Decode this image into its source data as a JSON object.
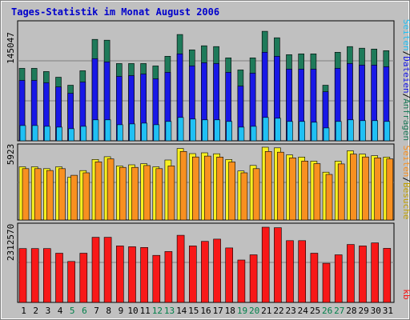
{
  "chart_data": {
    "type": "bar",
    "title": "Tages-Statistik im Monat August 2006",
    "categories": [
      "1",
      "2",
      "3",
      "4",
      "5",
      "6",
      "7",
      "8",
      "9",
      "10",
      "11",
      "12",
      "13",
      "14",
      "15",
      "16",
      "17",
      "18",
      "19",
      "20",
      "21",
      "22",
      "23",
      "24",
      "25",
      "26",
      "27",
      "28",
      "29",
      "30",
      "31"
    ],
    "weekend_days": [
      "5",
      "6",
      "12",
      "13",
      "19",
      "20",
      "26",
      "27"
    ],
    "panels": [
      {
        "name": "requests",
        "scale_label": "145047",
        "ymax": 145047,
        "series": [
          {
            "name": "Anfragen",
            "color": "#1e7a5a",
            "values": [
              90000,
              90000,
              86000,
              79000,
              69000,
              87000,
              126000,
              125000,
              96000,
              96000,
              96000,
              93000,
              105000,
              132000,
              113000,
              118000,
              117000,
              103000,
              88000,
              103000,
              136000,
              128000,
              107000,
              108000,
              108000,
              69000,
              110000,
              117000,
              115000,
              114000,
              112000
            ]
          },
          {
            "name": "Dateien",
            "color": "#1818e6",
            "values": [
              75000,
              75000,
              72000,
              67000,
              59000,
              73000,
              102000,
              98000,
              80000,
              81000,
              83000,
              77000,
              85000,
              108000,
              93000,
              97000,
              96000,
              85000,
              68000,
              84000,
              110000,
              105000,
              89000,
              89000,
              89000,
              61000,
              90000,
              96000,
              94000,
              94000,
              92000
            ]
          },
          {
            "name": "Seiten",
            "color": "#20c0f4",
            "values": [
              19000,
              19000,
              18000,
              17000,
              15000,
              18000,
              26000,
              26000,
              20000,
              21000,
              22000,
              20000,
              24000,
              29000,
              27000,
              26000,
              26000,
              24000,
              17000,
              18000,
              29000,
              28000,
              24000,
              24000,
              23000,
              16000,
              24000,
              26000,
              25000,
              25000,
              24000
            ]
          }
        ]
      },
      {
        "name": "visits",
        "scale_label": "5923",
        "ymax": 5923,
        "series": [
          {
            "name": "Besuche",
            "color": "#f8f020",
            "values": [
              4330,
              4330,
              4180,
              4330,
              3490,
              4020,
              4930,
              5150,
              4400,
              4490,
              4580,
              4330,
              4880,
              5820,
              5400,
              5470,
              5390,
              4920,
              3990,
              4440,
              5920,
              5870,
              5300,
              5120,
              4790,
              3890,
              4790,
              5630,
              5360,
              5230,
              5120
            ]
          },
          {
            "name": "Seiten",
            "color": "#f89020",
            "values": [
              4180,
              4180,
              4030,
              4180,
              3640,
              3840,
              4730,
              4970,
              4280,
              4280,
              4430,
              4180,
              4400,
              5580,
              5130,
              5200,
              5120,
              4720,
              3840,
              4180,
              5580,
              5520,
              5060,
              4800,
              4590,
              3710,
              4560,
              5360,
              5130,
              5060,
              4970
            ]
          }
        ]
      },
      {
        "name": "traffic",
        "scale_label": "2312570",
        "ymax": 2312570,
        "series": [
          {
            "name": "kb",
            "color": "#f81818",
            "values": [
              1655000,
              1655000,
              1655000,
              1513000,
              1259000,
              1513000,
              2003000,
              2003000,
              1737000,
              1712000,
              1689000,
              1446000,
              1564000,
              2064000,
              1737000,
              1877000,
              1946000,
              1676000,
              1303000,
              1464000,
              2312000,
              2298000,
              1899000,
              1899000,
              1513000,
              1203000,
              1464000,
              1780000,
              1737000,
              1830000,
              1664000
            ]
          }
        ]
      }
    ],
    "side_labels": [
      {
        "text": "Seiten",
        "color": "#20c0f4"
      },
      {
        "text": "/",
        "color": "#000000"
      },
      {
        "text": "Dateien",
        "color": "#1818e6"
      },
      {
        "text": "/",
        "color": "#000000"
      },
      {
        "text": "Anfragen",
        "color": "#1e7a5a"
      }
    ],
    "side_labels_mid": [
      {
        "text": "Seiten",
        "color": "#f89020"
      },
      {
        "text": "/",
        "color": "#000000"
      },
      {
        "text": "Besuche",
        "color": "#c0a000"
      }
    ],
    "side_labels_bot": [
      {
        "text": "kb",
        "color": "#f81818"
      }
    ],
    "colors": {
      "background": "#c0c0c0",
      "plot_background": "#c0c0c0",
      "title": "#0000cc",
      "weekend_label": "#00804a",
      "weekday_label": "#000000"
    }
  }
}
